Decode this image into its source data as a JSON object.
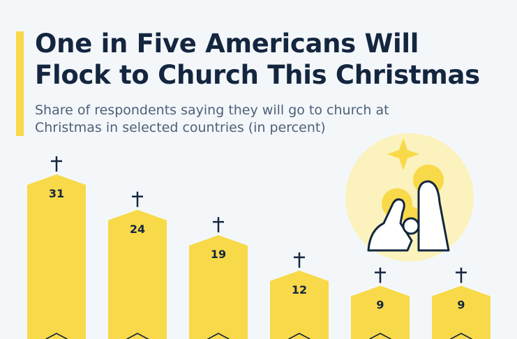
{
  "title_line1": "One in Five Americans Will",
  "title_line2": "Flock to Church This Christmas",
  "subtitle": "Share of respondents saying they will go to church at Christmas in selected countries (in percent)",
  "colors": {
    "accent": "#f8d949",
    "bar": "#f8d949",
    "text": "#14263f",
    "background": "#f4f7fa",
    "illustration_circle": "#fbf2bd"
  },
  "icons": [
    "cross-icon",
    "star-icon",
    "nativity-icon"
  ],
  "chart_data": {
    "type": "bar",
    "categories": [
      "",
      "",
      "",
      "",
      "",
      ""
    ],
    "values": [
      31,
      24,
      19,
      12,
      9,
      9
    ],
    "data_labels": [
      "31",
      "24",
      "19",
      "12",
      "9",
      "9"
    ],
    "ylim": [
      0,
      31
    ],
    "grid": false,
    "legend": "none"
  }
}
